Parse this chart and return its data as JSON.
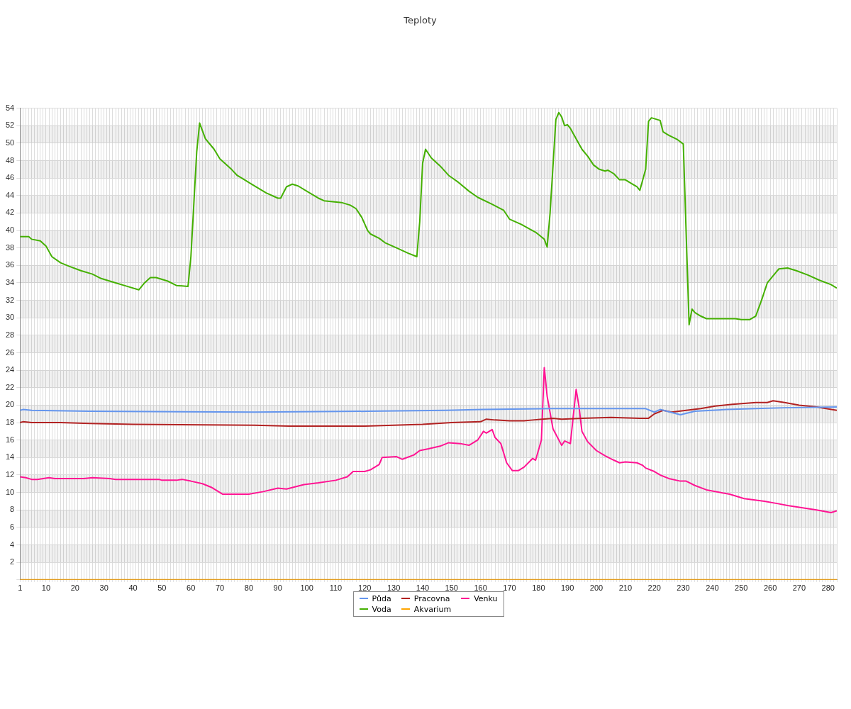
{
  "chart_data": {
    "type": "line",
    "title": "Teploty",
    "xlim": [
      1,
      283
    ],
    "xticks": [
      1,
      {
        "value": 2,
        "label": null
      },
      {
        "value": 3,
        "label": null
      },
      {
        "value": 4,
        "label": null
      },
      {
        "value": 5,
        "label": null
      },
      {
        "value": 6,
        "label": null
      },
      {
        "value": 7,
        "label": null
      },
      {
        "value": 8,
        "label": null
      },
      {
        "value": 9,
        "label": null
      },
      10,
      {
        "value": 11,
        "label": null
      },
      {
        "value": 12,
        "label": null
      },
      {
        "value": 13,
        "label": null
      },
      {
        "value": 14,
        "label": null
      },
      {
        "value": 15,
        "label": null
      },
      {
        "value": 16,
        "label": null
      },
      {
        "value": 17,
        "label": null
      },
      {
        "value": 18,
        "label": null
      },
      {
        "value": 19,
        "label": null
      },
      20,
      {
        "value": 21,
        "label": null
      },
      {
        "value": 22,
        "label": null
      },
      {
        "value": 23,
        "label": null
      },
      {
        "value": 24,
        "label": null
      },
      {
        "value": 25,
        "label": null
      },
      {
        "value": 26,
        "label": null
      },
      {
        "value": 27,
        "label": null
      },
      {
        "value": 28,
        "label": null
      },
      {
        "value": 29,
        "label": null
      },
      30,
      {
        "value": 31,
        "label": null
      },
      {
        "value": 32,
        "label": null
      },
      {
        "value": 33,
        "label": null
      },
      {
        "value": 34,
        "label": null
      },
      {
        "value": 35,
        "label": null
      },
      {
        "value": 36,
        "label": null
      },
      {
        "value": 37,
        "label": null
      },
      {
        "value": 38,
        "label": null
      },
      {
        "value": 39,
        "label": null
      },
      40,
      {
        "value": 41,
        "label": null
      },
      {
        "value": 42,
        "label": null
      },
      {
        "value": 43,
        "label": null
      },
      {
        "value": 44,
        "label": null
      },
      {
        "value": 45,
        "label": null
      },
      {
        "value": 46,
        "label": null
      },
      {
        "value": 47,
        "label": null
      },
      {
        "value": 48,
        "label": null
      },
      {
        "value": 49,
        "label": null
      },
      50,
      {
        "value": 51,
        "label": null
      },
      {
        "value": 52,
        "label": null
      },
      {
        "value": 53,
        "label": null
      },
      {
        "value": 54,
        "label": null
      },
      {
        "value": 55,
        "label": null
      },
      {
        "value": 56,
        "label": null
      },
      {
        "value": 57,
        "label": null
      },
      {
        "value": 58,
        "label": null
      },
      {
        "value": 59,
        "label": null
      },
      60,
      {
        "value": 61,
        "label": null
      },
      {
        "value": 62,
        "label": null
      },
      {
        "value": 63,
        "label": null
      },
      {
        "value": 64,
        "label": null
      },
      {
        "value": 65,
        "label": null
      },
      {
        "value": 66,
        "label": null
      },
      {
        "value": 67,
        "label": null
      },
      {
        "value": 68,
        "label": null
      },
      {
        "value": 69,
        "label": null
      },
      70,
      {
        "value": 71,
        "label": null
      },
      {
        "value": 72,
        "label": null
      },
      {
        "value": 73,
        "label": null
      },
      {
        "value": 74,
        "label": null
      },
      {
        "value": 75,
        "label": null
      },
      {
        "value": 76,
        "label": null
      },
      {
        "value": 77,
        "label": null
      },
      {
        "value": 78,
        "label": null
      },
      {
        "value": 79,
        "label": null
      },
      80,
      {
        "value": 81,
        "label": null
      },
      {
        "value": 82,
        "label": null
      },
      {
        "value": 83,
        "label": null
      },
      {
        "value": 84,
        "label": null
      },
      {
        "value": 85,
        "label": null
      },
      {
        "value": 86,
        "label": null
      },
      {
        "value": 87,
        "label": null
      },
      {
        "value": 88,
        "label": null
      },
      {
        "value": 89,
        "label": null
      },
      90,
      {
        "value": 91,
        "label": null
      },
      {
        "value": 92,
        "label": null
      },
      {
        "value": 93,
        "label": null
      },
      {
        "value": 94,
        "label": null
      },
      {
        "value": 95,
        "label": null
      },
      {
        "value": 96,
        "label": null
      },
      {
        "value": 97,
        "label": null
      },
      {
        "value": 98,
        "label": null
      },
      {
        "value": 99,
        "label": null
      },
      100,
      {
        "value": 101,
        "label": null
      },
      {
        "value": 102,
        "label": null
      },
      {
        "value": 103,
        "label": null
      },
      {
        "value": 104,
        "label": null
      },
      {
        "value": 105,
        "label": null
      },
      {
        "value": 106,
        "label": null
      },
      {
        "value": 107,
        "label": null
      },
      {
        "value": 108,
        "label": null
      },
      {
        "value": 109,
        "label": null
      },
      110,
      {
        "value": 111,
        "label": null
      },
      {
        "value": 112,
        "label": null
      },
      {
        "value": 113,
        "label": null
      },
      {
        "value": 114,
        "label": null
      },
      {
        "value": 115,
        "label": null
      },
      {
        "value": 116,
        "label": null
      },
      {
        "value": 117,
        "label": null
      },
      {
        "value": 118,
        "label": null
      },
      {
        "value": 119,
        "label": null
      },
      120,
      {
        "value": 121,
        "label": null
      },
      {
        "value": 122,
        "label": null
      },
      {
        "value": 123,
        "label": null
      },
      {
        "value": 124,
        "label": null
      },
      {
        "value": 125,
        "label": null
      },
      {
        "value": 126,
        "label": null
      },
      {
        "value": 127,
        "label": null
      },
      {
        "value": 128,
        "label": null
      },
      {
        "value": 129,
        "label": null
      },
      130,
      {
        "value": 131,
        "label": null
      },
      {
        "value": 132,
        "label": null
      },
      {
        "value": 133,
        "label": null
      },
      {
        "value": 134,
        "label": null
      },
      {
        "value": 135,
        "label": null
      },
      {
        "value": 136,
        "label": null
      },
      {
        "value": 137,
        "label": null
      },
      {
        "value": 138,
        "label": null
      },
      {
        "value": 139,
        "label": null
      },
      140,
      {
        "value": 141,
        "label": null
      },
      {
        "value": 142,
        "label": null
      },
      {
        "value": 143,
        "label": null
      },
      {
        "value": 144,
        "label": null
      },
      {
        "value": 145,
        "label": null
      },
      {
        "value": 146,
        "label": null
      },
      {
        "value": 147,
        "label": null
      },
      {
        "value": 148,
        "label": null
      },
      {
        "value": 149,
        "label": null
      },
      150,
      {
        "value": 151,
        "label": null
      },
      {
        "value": 152,
        "label": null
      },
      {
        "value": 153,
        "label": null
      },
      {
        "value": 154,
        "label": null
      },
      {
        "value": 155,
        "label": null
      },
      {
        "value": 156,
        "label": null
      },
      {
        "value": 157,
        "label": null
      },
      {
        "value": 158,
        "label": null
      },
      {
        "value": 159,
        "label": null
      },
      160,
      {
        "value": 161,
        "label": null
      },
      {
        "value": 162,
        "label": null
      },
      {
        "value": 163,
        "label": null
      },
      {
        "value": 164,
        "label": null
      },
      {
        "value": 165,
        "label": null
      },
      {
        "value": 166,
        "label": null
      },
      {
        "value": 167,
        "label": null
      },
      {
        "value": 168,
        "label": null
      },
      {
        "value": 169,
        "label": null
      },
      170,
      {
        "value": 171,
        "label": null
      },
      {
        "value": 172,
        "label": null
      },
      {
        "value": 173,
        "label": null
      },
      {
        "value": 174,
        "label": null
      },
      {
        "value": 175,
        "label": null
      },
      {
        "value": 176,
        "label": null
      },
      {
        "value": 177,
        "label": null
      },
      {
        "value": 178,
        "label": null
      },
      {
        "value": 179,
        "label": null
      },
      180,
      {
        "value": 181,
        "label": null
      },
      {
        "value": 182,
        "label": null
      },
      {
        "value": 183,
        "label": null
      },
      {
        "value": 184,
        "label": null
      },
      {
        "value": 185,
        "label": null
      },
      {
        "value": 186,
        "label": null
      },
      {
        "value": 187,
        "label": null
      },
      {
        "value": 188,
        "label": null
      },
      {
        "value": 189,
        "label": null
      },
      190,
      {
        "value": 191,
        "label": null
      },
      {
        "value": 192,
        "label": null
      },
      {
        "value": 193,
        "label": null
      },
      {
        "value": 194,
        "label": null
      },
      {
        "value": 195,
        "label": null
      },
      {
        "value": 196,
        "label": null
      },
      {
        "value": 197,
        "label": null
      },
      {
        "value": 198,
        "label": null
      },
      {
        "value": 199,
        "label": null
      },
      200,
      {
        "value": 201,
        "label": null
      },
      {
        "value": 202,
        "label": null
      },
      {
        "value": 203,
        "label": null
      },
      {
        "value": 204,
        "label": null
      },
      {
        "value": 205,
        "label": null
      },
      {
        "value": 206,
        "label": null
      },
      {
        "value": 207,
        "label": null
      },
      {
        "value": 208,
        "label": null
      },
      {
        "value": 209,
        "label": null
      },
      210,
      {
        "value": 211,
        "label": null
      },
      {
        "value": 212,
        "label": null
      },
      {
        "value": 213,
        "label": null
      },
      {
        "value": 214,
        "label": null
      },
      {
        "value": 215,
        "label": null
      },
      {
        "value": 216,
        "label": null
      },
      {
        "value": 217,
        "label": null
      },
      {
        "value": 218,
        "label": null
      },
      {
        "value": 219,
        "label": null
      },
      220,
      {
        "value": 221,
        "label": null
      },
      {
        "value": 222,
        "label": null
      },
      {
        "value": 223,
        "label": null
      },
      {
        "value": 224,
        "label": null
      },
      {
        "value": 225,
        "label": null
      },
      {
        "value": 226,
        "label": null
      },
      {
        "value": 227,
        "label": null
      },
      {
        "value": 228,
        "label": null
      },
      {
        "value": 229,
        "label": null
      },
      230,
      {
        "value": 231,
        "label": null
      },
      {
        "value": 232,
        "label": null
      },
      {
        "value": 233,
        "label": null
      },
      {
        "value": 234,
        "label": null
      },
      {
        "value": 235,
        "label": null
      },
      {
        "value": 236,
        "label": null
      },
      {
        "value": 237,
        "label": null
      },
      {
        "value": 238,
        "label": null
      },
      {
        "value": 239,
        "label": null
      },
      240,
      {
        "value": 241,
        "label": null
      },
      {
        "value": 242,
        "label": null
      },
      {
        "value": 243,
        "label": null
      },
      {
        "value": 244,
        "label": null
      },
      {
        "value": 245,
        "label": null
      },
      {
        "value": 246,
        "label": null
      },
      {
        "value": 247,
        "label": null
      },
      {
        "value": 248,
        "label": null
      },
      {
        "value": 249,
        "label": null
      },
      250,
      {
        "value": 251,
        "label": null
      },
      {
        "value": 252,
        "label": null
      },
      {
        "value": 253,
        "label": null
      },
      {
        "value": 254,
        "label": null
      },
      {
        "value": 255,
        "label": null
      },
      {
        "value": 256,
        "label": null
      },
      {
        "value": 257,
        "label": null
      },
      {
        "value": 258,
        "label": null
      },
      {
        "value": 259,
        "label": null
      },
      260,
      {
        "value": 261,
        "label": null
      },
      {
        "value": 262,
        "label": null
      },
      {
        "value": 263,
        "label": null
      },
      {
        "value": 264,
        "label": null
      },
      {
        "value": 265,
        "label": null
      },
      {
        "value": 266,
        "label": null
      },
      {
        "value": 267,
        "label": null
      },
      {
        "value": 268,
        "label": null
      },
      {
        "value": 269,
        "label": null
      },
      270,
      {
        "value": 271,
        "label": null
      },
      {
        "value": 272,
        "label": null
      },
      {
        "value": 273,
        "label": null
      },
      {
        "value": 274,
        "label": null
      },
      {
        "value": 275,
        "label": null
      },
      {
        "value": 276,
        "label": null
      },
      {
        "value": 277,
        "label": null
      },
      {
        "value": 278,
        "label": null
      },
      {
        "value": 279,
        "label": null
      },
      280,
      {
        "value": 281,
        "label": null
      },
      {
        "value": 282,
        "label": null
      },
      {
        "value": 283,
        "label": null
      }
    ],
    "ylim": [
      0,
      54
    ],
    "yticks": [
      {
        "value": 0,
        "label": null
      },
      2,
      4,
      6,
      8,
      10,
      12,
      14,
      16,
      18,
      20,
      22,
      24,
      26,
      28,
      30,
      32,
      34,
      36,
      38,
      40,
      42,
      44,
      46,
      48,
      50,
      52,
      54
    ],
    "grid": true,
    "legend": "bottom",
    "series": [
      {
        "name": "Půda",
        "color": "#6495ed",
        "x": [
          1,
          2,
          5,
          25,
          82,
          121,
          148,
          161,
          185,
          217,
          220,
          222,
          229,
          234,
          245,
          255,
          265,
          283
        ],
        "values": [
          19.4,
          19.5,
          19.4,
          19.3,
          19.2,
          19.3,
          19.4,
          19.5,
          19.6,
          19.6,
          19.2,
          19.5,
          18.9,
          19.3,
          19.5,
          19.6,
          19.7,
          19.8
        ]
      },
      {
        "name": "Voda",
        "color": "#44b000",
        "x": [
          1,
          4,
          5,
          8,
          10,
          11,
          12,
          15,
          18,
          22,
          26,
          29,
          33,
          38,
          42,
          44,
          46,
          48,
          52,
          55,
          59,
          60,
          62,
          63,
          65,
          68,
          70,
          74,
          76,
          81,
          86,
          90,
          91,
          93,
          95,
          97,
          101,
          104,
          106,
          109,
          112,
          115,
          117,
          119,
          121,
          122,
          125,
          127,
          131,
          135,
          138,
          139,
          140,
          141,
          143,
          146,
          149,
          152,
          156,
          159,
          164,
          168,
          170,
          174,
          179,
          182,
          183,
          184,
          186,
          187,
          188,
          189,
          190,
          191,
          193,
          195,
          197,
          199,
          201,
          203,
          204,
          206,
          208,
          210,
          212,
          214,
          215,
          217,
          218,
          219,
          222,
          223,
          225,
          228,
          230,
          232,
          233,
          234,
          236,
          238,
          248,
          250,
          253,
          255,
          257,
          259,
          262,
          263,
          266,
          269,
          273,
          277,
          281,
          283
        ],
        "values": [
          39.3,
          39.3,
          39.0,
          38.8,
          38.2,
          37.6,
          37.0,
          36.3,
          35.9,
          35.4,
          35.0,
          34.5,
          34.1,
          33.6,
          33.2,
          34.0,
          34.6,
          34.6,
          34.2,
          33.7,
          33.6,
          37.0,
          49.0,
          52.3,
          50.5,
          49.3,
          48.2,
          47.0,
          46.3,
          45.3,
          44.3,
          43.7,
          43.7,
          45.0,
          45.3,
          45.1,
          44.3,
          43.7,
          43.4,
          43.3,
          43.2,
          42.9,
          42.5,
          41.5,
          40.0,
          39.6,
          39.1,
          38.6,
          38.0,
          37.4,
          37.0,
          41.0,
          47.7,
          49.3,
          48.3,
          47.4,
          46.3,
          45.6,
          44.5,
          43.8,
          43.0,
          42.3,
          41.3,
          40.7,
          39.8,
          39.0,
          38.1,
          42.0,
          52.7,
          53.5,
          53.0,
          52.0,
          52.1,
          51.7,
          50.5,
          49.3,
          48.5,
          47.5,
          47.0,
          46.8,
          46.9,
          46.5,
          45.8,
          45.8,
          45.4,
          45.0,
          44.6,
          47.0,
          52.5,
          52.9,
          52.6,
          51.3,
          50.9,
          50.4,
          49.9,
          29.2,
          31.0,
          30.6,
          30.2,
          29.9,
          29.9,
          29.8,
          29.8,
          30.2,
          32.0,
          34.0,
          35.2,
          35.6,
          35.7,
          35.4,
          34.9,
          34.3,
          33.8,
          33.4
        ]
      },
      {
        "name": "Pracovna",
        "color": "#b22222",
        "x": [
          1,
          2,
          5,
          15,
          25,
          40,
          82,
          94,
          120,
          130,
          140,
          150,
          160,
          162,
          165,
          170,
          175,
          178,
          185,
          188,
          195,
          205,
          215,
          218,
          220,
          223,
          226,
          231,
          236,
          241,
          247,
          255,
          259,
          261,
          265,
          270,
          276,
          283
        ],
        "values": [
          18.0,
          18.1,
          18.0,
          18.0,
          17.9,
          17.8,
          17.7,
          17.6,
          17.6,
          17.7,
          17.8,
          18.0,
          18.1,
          18.4,
          18.3,
          18.2,
          18.2,
          18.3,
          18.5,
          18.4,
          18.5,
          18.6,
          18.5,
          18.5,
          19.0,
          19.4,
          19.2,
          19.4,
          19.6,
          19.9,
          20.1,
          20.3,
          20.3,
          20.5,
          20.3,
          20.0,
          19.8,
          19.4
        ]
      },
      {
        "name": "Akvarium",
        "color": "#ffa500",
        "x": [
          1,
          283
        ],
        "values": [
          0,
          0
        ]
      },
      {
        "name": "Venku",
        "color": "#ff1493",
        "x": [
          1,
          3,
          5,
          7,
          11,
          13,
          23,
          26,
          32,
          34,
          49,
          50,
          55,
          57,
          60,
          64,
          67,
          71,
          80,
          85,
          90,
          93,
          99,
          104,
          110,
          114,
          116,
          120,
          122,
          125,
          126,
          131,
          133,
          137,
          139,
          142,
          146,
          149,
          153,
          156,
          159,
          161,
          162,
          164,
          165,
          167,
          169,
          171,
          173,
          175,
          178,
          179,
          181,
          182,
          183,
          185,
          188,
          189,
          191,
          193,
          194,
          195,
          197,
          200,
          203,
          206,
          208,
          210,
          214,
          216,
          217,
          220,
          222,
          225,
          229,
          231,
          234,
          238,
          246,
          251,
          258,
          263,
          266,
          270,
          276,
          281,
          283
        ],
        "values": [
          11.8,
          11.7,
          11.5,
          11.5,
          11.7,
          11.6,
          11.6,
          11.7,
          11.6,
          11.5,
          11.5,
          11.4,
          11.4,
          11.5,
          11.3,
          11.0,
          10.6,
          9.8,
          9.8,
          10.1,
          10.5,
          10.4,
          10.9,
          11.1,
          11.4,
          11.8,
          12.4,
          12.4,
          12.6,
          13.2,
          14.0,
          14.1,
          13.8,
          14.3,
          14.8,
          15.0,
          15.3,
          15.7,
          15.6,
          15.4,
          16.0,
          17.0,
          16.8,
          17.2,
          16.3,
          15.6,
          13.4,
          12.5,
          12.5,
          12.9,
          13.9,
          13.7,
          16.0,
          24.3,
          21.0,
          17.3,
          15.4,
          15.9,
          15.6,
          21.8,
          19.8,
          17.0,
          15.8,
          14.8,
          14.2,
          13.7,
          13.4,
          13.5,
          13.4,
          13.1,
          12.8,
          12.4,
          12.0,
          11.6,
          11.3,
          11.3,
          10.8,
          10.3,
          9.8,
          9.3,
          9.0,
          8.7,
          8.5,
          8.3,
          8.0,
          7.7,
          7.9
        ]
      }
    ]
  }
}
